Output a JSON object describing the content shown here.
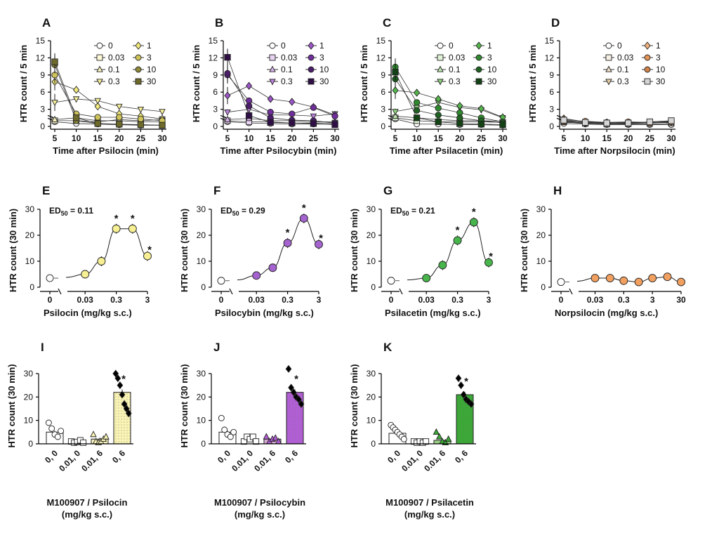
{
  "colors": {
    "psilocin": "#f6ef93",
    "psilocybin": "#a463cf",
    "psilacetin": "#47b54b",
    "norpsilocin": "#f1a060",
    "bar_psilocin": "#f9f4b4",
    "bar_psilocybin": "#b25ed6",
    "bar_psilacetin": "#3aa935"
  },
  "time_legend": {
    "low_doses": [
      "0",
      "0.03",
      "0.1",
      "0.3"
    ],
    "high_doses_D": [
      "1",
      "3",
      "10",
      "30"
    ],
    "high_doses": [
      "1",
      "3",
      "10",
      "30"
    ]
  },
  "chart_data": [
    {
      "panel": "A",
      "type": "line",
      "xlabel": "Time after Psilocin (min)",
      "ylabel": "HTR count / 5 min",
      "x": [
        5,
        10,
        15,
        20,
        25,
        30
      ],
      "ylim": [
        0,
        15
      ],
      "yticks": [
        "0",
        "3",
        "6",
        "9",
        "12",
        "15"
      ],
      "xticks": [
        "5",
        "10",
        "15",
        "20",
        "25",
        "30"
      ],
      "legend": [
        "0",
        "0.03",
        "0.1",
        "0.3",
        "1",
        "3",
        "10",
        "30"
      ],
      "series": [
        {
          "name": "0",
          "values": [
            0.8,
            0.5,
            0.4,
            0.3,
            0.3,
            0.2
          ]
        },
        {
          "name": "0.03",
          "values": [
            1.0,
            1.0,
            0.8,
            1.2,
            1.0,
            1.2
          ]
        },
        {
          "name": "0.1",
          "values": [
            1.2,
            1.5,
            1.0,
            1.0,
            0.8,
            0.8
          ]
        },
        {
          "name": "0.3",
          "values": [
            4.2,
            4.8,
            4.5,
            3.5,
            3.0,
            2.6
          ]
        },
        {
          "name": "1",
          "values": [
            7.8,
            6.4,
            3.5,
            2.2,
            1.8,
            1.3
          ]
        },
        {
          "name": "3",
          "values": [
            9.0,
            2.2,
            1.6,
            1.6,
            1.3,
            1.0
          ]
        },
        {
          "name": "10",
          "values": [
            10.8,
            1.0,
            0.5,
            0.3,
            0.2,
            0.2
          ]
        },
        {
          "name": "30",
          "values": [
            11.3,
            1.5,
            0.5,
            0.4,
            0.3,
            0.2
          ]
        }
      ]
    },
    {
      "panel": "B",
      "type": "line",
      "xlabel": "Time after Psilocybin (min)",
      "ylabel": "HTR count / 5 min",
      "x": [
        5,
        10,
        15,
        20,
        25,
        30
      ],
      "ylim": [
        0,
        15
      ],
      "yticks": [
        "0",
        "3",
        "6",
        "9",
        "12",
        "15"
      ],
      "xticks": [
        "5",
        "10",
        "15",
        "20",
        "25",
        "30"
      ],
      "legend": [
        "0",
        "0.03",
        "0.1",
        "0.3",
        "1",
        "3",
        "10",
        "30"
      ],
      "series": [
        {
          "name": "0",
          "values": [
            0.8,
            0.6,
            0.5,
            0.4,
            0.4,
            0.4
          ]
        },
        {
          "name": "0.03",
          "values": [
            1.0,
            0.8,
            0.8,
            0.6,
            0.6,
            0.6
          ]
        },
        {
          "name": "0.1",
          "values": [
            1.2,
            1.4,
            1.0,
            1.0,
            0.8,
            0.8
          ]
        },
        {
          "name": "0.3",
          "values": [
            2.5,
            3.0,
            2.0,
            2.0,
            1.8,
            2.2
          ]
        },
        {
          "name": "1",
          "values": [
            5.4,
            7.1,
            4.8,
            4.3,
            3.4,
            2.0
          ]
        },
        {
          "name": "3",
          "values": [
            9.0,
            4.5,
            2.5,
            2.2,
            3.3,
            1.8
          ]
        },
        {
          "name": "10",
          "values": [
            9.3,
            3.6,
            1.5,
            1.1,
            1.0,
            0.6
          ]
        },
        {
          "name": "30",
          "values": [
            12.1,
            1.9,
            0.7,
            0.6,
            0.5,
            0.3
          ]
        }
      ]
    },
    {
      "panel": "C",
      "type": "line",
      "xlabel": "Time after Psilacetin (min)",
      "ylabel": "HTR count / 5 min",
      "x": [
        5,
        10,
        15,
        20,
        25,
        30
      ],
      "ylim": [
        0,
        15
      ],
      "yticks": [
        "0",
        "3",
        "6",
        "9",
        "12",
        "15"
      ],
      "xticks": [
        "5",
        "10",
        "15",
        "20",
        "25",
        "30"
      ],
      "legend": [
        "0",
        "0.03",
        "0.1",
        "0.3",
        "1",
        "3",
        "10",
        "30"
      ],
      "series": [
        {
          "name": "0",
          "values": [
            1.3,
            0.4,
            0.4,
            0.3,
            0.3,
            0.2
          ]
        },
        {
          "name": "0.03",
          "values": [
            1.5,
            1.0,
            0.8,
            0.8,
            0.8,
            0.7
          ]
        },
        {
          "name": "0.1",
          "values": [
            1.8,
            1.5,
            1.2,
            1.0,
            1.0,
            0.9
          ]
        },
        {
          "name": "0.3",
          "values": [
            2.6,
            3.3,
            4.2,
            3.3,
            2.9,
            1.5
          ]
        },
        {
          "name": "1",
          "values": [
            6.3,
            5.9,
            4.8,
            3.6,
            3.1,
            1.6
          ]
        },
        {
          "name": "3",
          "values": [
            10.4,
            4.2,
            3.2,
            2.4,
            1.5,
            0.8
          ]
        },
        {
          "name": "10",
          "values": [
            8.3,
            2.8,
            2.0,
            1.5,
            1.0,
            0.6
          ]
        },
        {
          "name": "30",
          "values": [
            9.5,
            1.5,
            0.8,
            0.5,
            0.4,
            0.3
          ]
        }
      ]
    },
    {
      "panel": "D",
      "type": "line",
      "xlabel": "Time after Norpsilocin (min)",
      "ylabel": "HTR count / 5 min",
      "x": [
        5,
        10,
        15,
        20,
        25,
        30
      ],
      "ylim": [
        0,
        15
      ],
      "yticks": [
        "0",
        "3",
        "6",
        "9",
        "12",
        "15"
      ],
      "xticks": [
        "5",
        "10",
        "15",
        "20",
        "25",
        "30"
      ],
      "legend": [
        "0",
        "0.03",
        "0.1",
        "0.3",
        "1",
        "3",
        "10",
        "30"
      ],
      "series": [
        {
          "name": "0",
          "values": [
            0.5,
            0.4,
            0.3,
            0.3,
            0.3,
            0.3
          ]
        },
        {
          "name": "0.03",
          "values": [
            0.8,
            0.5,
            0.4,
            0.5,
            0.8,
            0.6
          ]
        },
        {
          "name": "0.1",
          "values": [
            0.7,
            0.6,
            0.5,
            0.4,
            0.4,
            0.5
          ]
        },
        {
          "name": "0.3",
          "values": [
            1.0,
            0.7,
            0.6,
            0.6,
            0.6,
            0.7
          ]
        },
        {
          "name": "1",
          "values": [
            1.4,
            0.8,
            0.7,
            0.7,
            0.7,
            0.8
          ]
        },
        {
          "name": "3",
          "values": [
            1.2,
            0.9,
            0.7,
            0.8,
            0.7,
            0.9
          ]
        },
        {
          "name": "10",
          "values": [
            0.9,
            0.6,
            0.6,
            0.5,
            0.6,
            0.8
          ]
        },
        {
          "name": "30",
          "values": [
            1.1,
            0.7,
            0.6,
            0.6,
            0.8,
            1.0
          ]
        }
      ]
    },
    {
      "panel": "E",
      "type": "scatter",
      "xlabel": "Psilocin (mg/kg s.c.)",
      "ylabel": "HTR count (30 min)",
      "ed50_prefix": "ED",
      "ed50_sub": "50",
      "ed50_value": " = 0.11",
      "ylim": [
        0,
        30
      ],
      "yticks": [
        "0",
        "10",
        "20",
        "30"
      ],
      "xticks": [
        "0",
        "0.03",
        "0.3",
        "3"
      ],
      "xlim": [
        0.01,
        3
      ],
      "vehicle": 3.5,
      "x": [
        0.03,
        0.1,
        0.3,
        1,
        3
      ],
      "y": [
        5,
        10,
        22.5,
        22.5,
        12
      ],
      "significant": [
        false,
        false,
        true,
        true,
        true
      ]
    },
    {
      "panel": "F",
      "type": "scatter",
      "xlabel": "Psilocybin (mg/kg s.c.)",
      "ylabel": "HTR count (30 min)",
      "ed50_prefix": "ED",
      "ed50_sub": "50",
      "ed50_value": " = 0.29",
      "ylim": [
        0,
        30
      ],
      "yticks": [
        "0",
        "10",
        "20",
        "30"
      ],
      "xticks": [
        "0",
        "0.03",
        "0.3",
        "3"
      ],
      "xlim": [
        0.01,
        3
      ],
      "vehicle": 2.5,
      "x": [
        0.03,
        0.1,
        0.3,
        1,
        3
      ],
      "y": [
        4.5,
        7.5,
        17,
        26.5,
        16.5
      ],
      "significant": [
        false,
        false,
        true,
        true,
        true
      ]
    },
    {
      "panel": "G",
      "type": "scatter",
      "xlabel": "Psilacetin (mg/kg s.c.)",
      "ylabel": "HTR count (30 min)",
      "ed50_prefix": "ED",
      "ed50_sub": "50",
      "ed50_value": " = 0.21",
      "ylim": [
        0,
        30
      ],
      "yticks": [
        "0",
        "10",
        "20",
        "30"
      ],
      "xticks": [
        "0",
        "0.03",
        "0.3",
        "3"
      ],
      "xlim": [
        0.01,
        3
      ],
      "vehicle": 2.5,
      "x": [
        0.03,
        0.1,
        0.3,
        1,
        3
      ],
      "y": [
        3.5,
        8.5,
        18,
        25,
        9.5
      ],
      "significant": [
        false,
        false,
        true,
        true,
        true
      ]
    },
    {
      "panel": "H",
      "type": "scatter",
      "xlabel": "Norpsilocin (mg/kg s.c.)",
      "ylabel": "HTR count (30 min)",
      "ylim": [
        0,
        30
      ],
      "yticks": [
        "0",
        "10",
        "20",
        "30"
      ],
      "xticks": [
        "0",
        "0.03",
        "0.3",
        "3",
        "30"
      ],
      "xlim": [
        0.01,
        30
      ],
      "vehicle": 2,
      "x": [
        0.03,
        0.1,
        0.3,
        1,
        3,
        10,
        30
      ],
      "y": [
        3.5,
        3.5,
        2.5,
        2,
        3.5,
        4,
        2
      ],
      "significant": [
        false,
        false,
        false,
        false,
        false,
        false,
        false
      ]
    },
    {
      "panel": "I",
      "type": "bar",
      "xlabel_line1": "M100907 / Psilocin",
      "xlabel_line2": "(mg/kg s.c.)",
      "ylabel": "HTR count (30 min)",
      "ylim": [
        0,
        30
      ],
      "yticks": [
        "0",
        "10",
        "20",
        "30"
      ],
      "categories": [
        "0, 0",
        "0.01, 0",
        "0.01, 6",
        "0, 6"
      ],
      "values": [
        5,
        1.2,
        2,
        22
      ],
      "significant": [
        false,
        false,
        false,
        true
      ],
      "points": [
        [
          9,
          6.5,
          4,
          3,
          5.5
        ],
        [
          1,
          0.5,
          0.8,
          1.5,
          0.5
        ],
        [
          4,
          1,
          0.5,
          1,
          2,
          3
        ],
        [
          30,
          28,
          25,
          21,
          17,
          15,
          13
        ]
      ]
    },
    {
      "panel": "J",
      "type": "bar",
      "xlabel_line1": "M100907 / Psilocybin",
      "xlabel_line2": "(mg/kg s.c.)",
      "ylabel": "HTR count (30 min)",
      "ylim": [
        0,
        30
      ],
      "yticks": [
        "0",
        "10",
        "20",
        "30"
      ],
      "categories": [
        "0, 0",
        "0.01, 0",
        "0.01, 6",
        "0, 6"
      ],
      "values": [
        5,
        2,
        2,
        22
      ],
      "significant": [
        false,
        false,
        false,
        true
      ],
      "points": [
        [
          11,
          6,
          4,
          3,
          5
        ],
        [
          1,
          3,
          2,
          3,
          1
        ],
        [
          3,
          1,
          2,
          2.5,
          1
        ],
        [
          32,
          24,
          22,
          20,
          19,
          17
        ]
      ]
    },
    {
      "panel": "K",
      "type": "bar",
      "xlabel_line1": "M100907 / Psilacetin",
      "xlabel_line2": "(mg/kg s.c.)",
      "ylabel": "HTR count (30 min)",
      "ylim": [
        0,
        30
      ],
      "yticks": [
        "0",
        "10",
        "20",
        "30"
      ],
      "categories": [
        "0, 0",
        "0.01, 0",
        "0.01, 6",
        "0, 6"
      ],
      "values": [
        4.5,
        1,
        1.5,
        21
      ],
      "significant": [
        false,
        false,
        false,
        true
      ],
      "points": [
        [
          8,
          7,
          6,
          5,
          4,
          3,
          2
        ],
        [
          1,
          0.5,
          1,
          0.5,
          1
        ],
        [
          5,
          3,
          1,
          0.5,
          2
        ],
        [
          28,
          25,
          21,
          19,
          18,
          17
        ]
      ]
    }
  ]
}
